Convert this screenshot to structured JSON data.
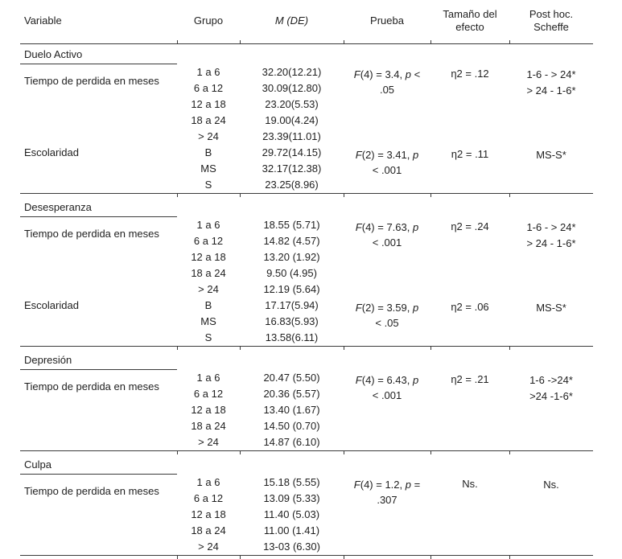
{
  "colors": {
    "background": "#ffffff",
    "text": "#1f1f1f",
    "rule_lines": "#3a3a3a"
  },
  "table": {
    "headers": [
      {
        "id": "variable",
        "segments": [
          [
            "Variable",
            0
          ]
        ]
      },
      {
        "id": "grupo",
        "segments": [
          [
            "Grupo",
            0
          ]
        ]
      },
      {
        "id": "m-de",
        "segments": [
          [
            "M (DE)",
            1
          ]
        ]
      },
      {
        "id": "prueba",
        "segments": [
          [
            "Prueba",
            0
          ]
        ]
      },
      {
        "id": "tamano-del-efecto",
        "segments": [
          [
            "Tamaño del efecto",
            0
          ]
        ]
      },
      {
        "id": "post-hoc-scheffe",
        "segments": [
          [
            "Post hoc. Scheffe",
            0
          ]
        ]
      }
    ],
    "sections": [
      {
        "title": "Duelo Activo",
        "blocks": [
          {
            "variable": "Tiempo de perdida en meses",
            "rows": [
              {
                "group": "1 a 6",
                "m_de": "32.20(12.21)"
              },
              {
                "group": "6 a 12",
                "m_de": "30.09(12.80)"
              },
              {
                "group": "12 a 18",
                "m_de": "23.20(5.53)"
              },
              {
                "group": "18 a 24",
                "m_de": "19.00(4.24)"
              },
              {
                "group": "> 24",
                "m_de": "23.39(11.01)"
              }
            ],
            "prueba_segments": [
              [
                "F",
                1
              ],
              [
                "(4) = 3.4, ",
                0
              ],
              [
                "p",
                1
              ],
              [
                " <",
                0
              ],
              [
                "\n",
                0
              ],
              [
                ".05",
                0
              ]
            ],
            "efecto": "η2 = .12",
            "post_hoc_lines": [
              "1-6 - > 24*",
              "> 24 - 1-6*"
            ]
          },
          {
            "variable": "Escolaridad",
            "rows": [
              {
                "group": "B",
                "m_de": "29.72(14.15)"
              },
              {
                "group": "MS",
                "m_de": "32.17(12.38)"
              },
              {
                "group": "S",
                "m_de": "23.25(8.96)"
              }
            ],
            "prueba_segments": [
              [
                "F",
                1
              ],
              [
                "(2) = 3.41, ",
                0
              ],
              [
                "p",
                1
              ],
              [
                "\n",
                0
              ],
              [
                "< .001",
                0
              ]
            ],
            "efecto": "η2 = .11",
            "post_hoc_lines": [
              "MS-S*"
            ]
          }
        ]
      },
      {
        "title": "Desesperanza",
        "blocks": [
          {
            "variable": "Tiempo de perdida en meses",
            "rows": [
              {
                "group": "1 a 6",
                "m_de": "18.55 (5.71)"
              },
              {
                "group": "6 a 12",
                "m_de": "14.82 (4.57)"
              },
              {
                "group": "12 a 18",
                "m_de": "13.20 (1.92)"
              },
              {
                "group": "18 a 24",
                "m_de": "9.50 (4.95)"
              },
              {
                "group": "> 24",
                "m_de": "12.19 (5.64)"
              }
            ],
            "prueba_segments": [
              [
                "F",
                1
              ],
              [
                "(4) = 7.63, ",
                0
              ],
              [
                "p",
                1
              ],
              [
                "\n",
                0
              ],
              [
                "< .001",
                0
              ]
            ],
            "efecto": "η2 = .24",
            "post_hoc_lines": [
              "1-6 - > 24*",
              "> 24 - 1-6*"
            ]
          },
          {
            "variable": "Escolaridad",
            "rows": [
              {
                "group": "B",
                "m_de": "17.17(5.94)"
              },
              {
                "group": "MS",
                "m_de": "16.83(5.93)"
              },
              {
                "group": "S",
                "m_de": "13.58(6.11)"
              }
            ],
            "prueba_segments": [
              [
                "F",
                1
              ],
              [
                "(2) = 3.59, ",
                0
              ],
              [
                "p",
                1
              ],
              [
                "\n",
                0
              ],
              [
                "< .05",
                0
              ]
            ],
            "efecto": "η2 = .06",
            "post_hoc_lines": [
              "MS-S*"
            ]
          }
        ]
      },
      {
        "title": "Depresión",
        "blocks": [
          {
            "variable": "Tiempo de perdida en meses",
            "rows": [
              {
                "group": "1 a 6",
                "m_de": "20.47 (5.50)"
              },
              {
                "group": "6 a 12",
                "m_de": "20.36 (5.57)"
              },
              {
                "group": "12 a 18",
                "m_de": "13.40 (1.67)"
              },
              {
                "group": "18 a 24",
                "m_de": "14.50 (0.70)"
              },
              {
                "group": "> 24",
                "m_de": "14.87 (6.10)"
              }
            ],
            "prueba_segments": [
              [
                "F",
                1
              ],
              [
                "(4) = 6.43, ",
                0
              ],
              [
                "p",
                1
              ],
              [
                "\n",
                0
              ],
              [
                "< .001",
                0
              ]
            ],
            "efecto": "η2 = .21",
            "post_hoc_lines": [
              "1-6 ->24*",
              ">24 -1-6*"
            ]
          }
        ]
      },
      {
        "title": "Culpa",
        "blocks": [
          {
            "variable": "Tiempo de perdida en meses",
            "rows": [
              {
                "group": "1 a 6",
                "m_de": "15.18 (5.55)"
              },
              {
                "group": "6 a 12",
                "m_de": "13.09 (5.33)"
              },
              {
                "group": "12 a 18",
                "m_de": "11.40 (5.03)"
              },
              {
                "group": "18 a 24",
                "m_de": "11.00 (1.41)"
              },
              {
                "group": "> 24",
                "m_de": "13-03 (6.30)"
              }
            ],
            "prueba_segments": [
              [
                "F",
                1
              ],
              [
                "(4) = 1.2, ",
                0
              ],
              [
                "p",
                1
              ],
              [
                " =",
                0
              ],
              [
                "\n",
                0
              ],
              [
                ".307",
                0
              ]
            ],
            "efecto": "Ns.",
            "post_hoc_lines": [
              "Ns."
            ]
          }
        ]
      }
    ]
  }
}
